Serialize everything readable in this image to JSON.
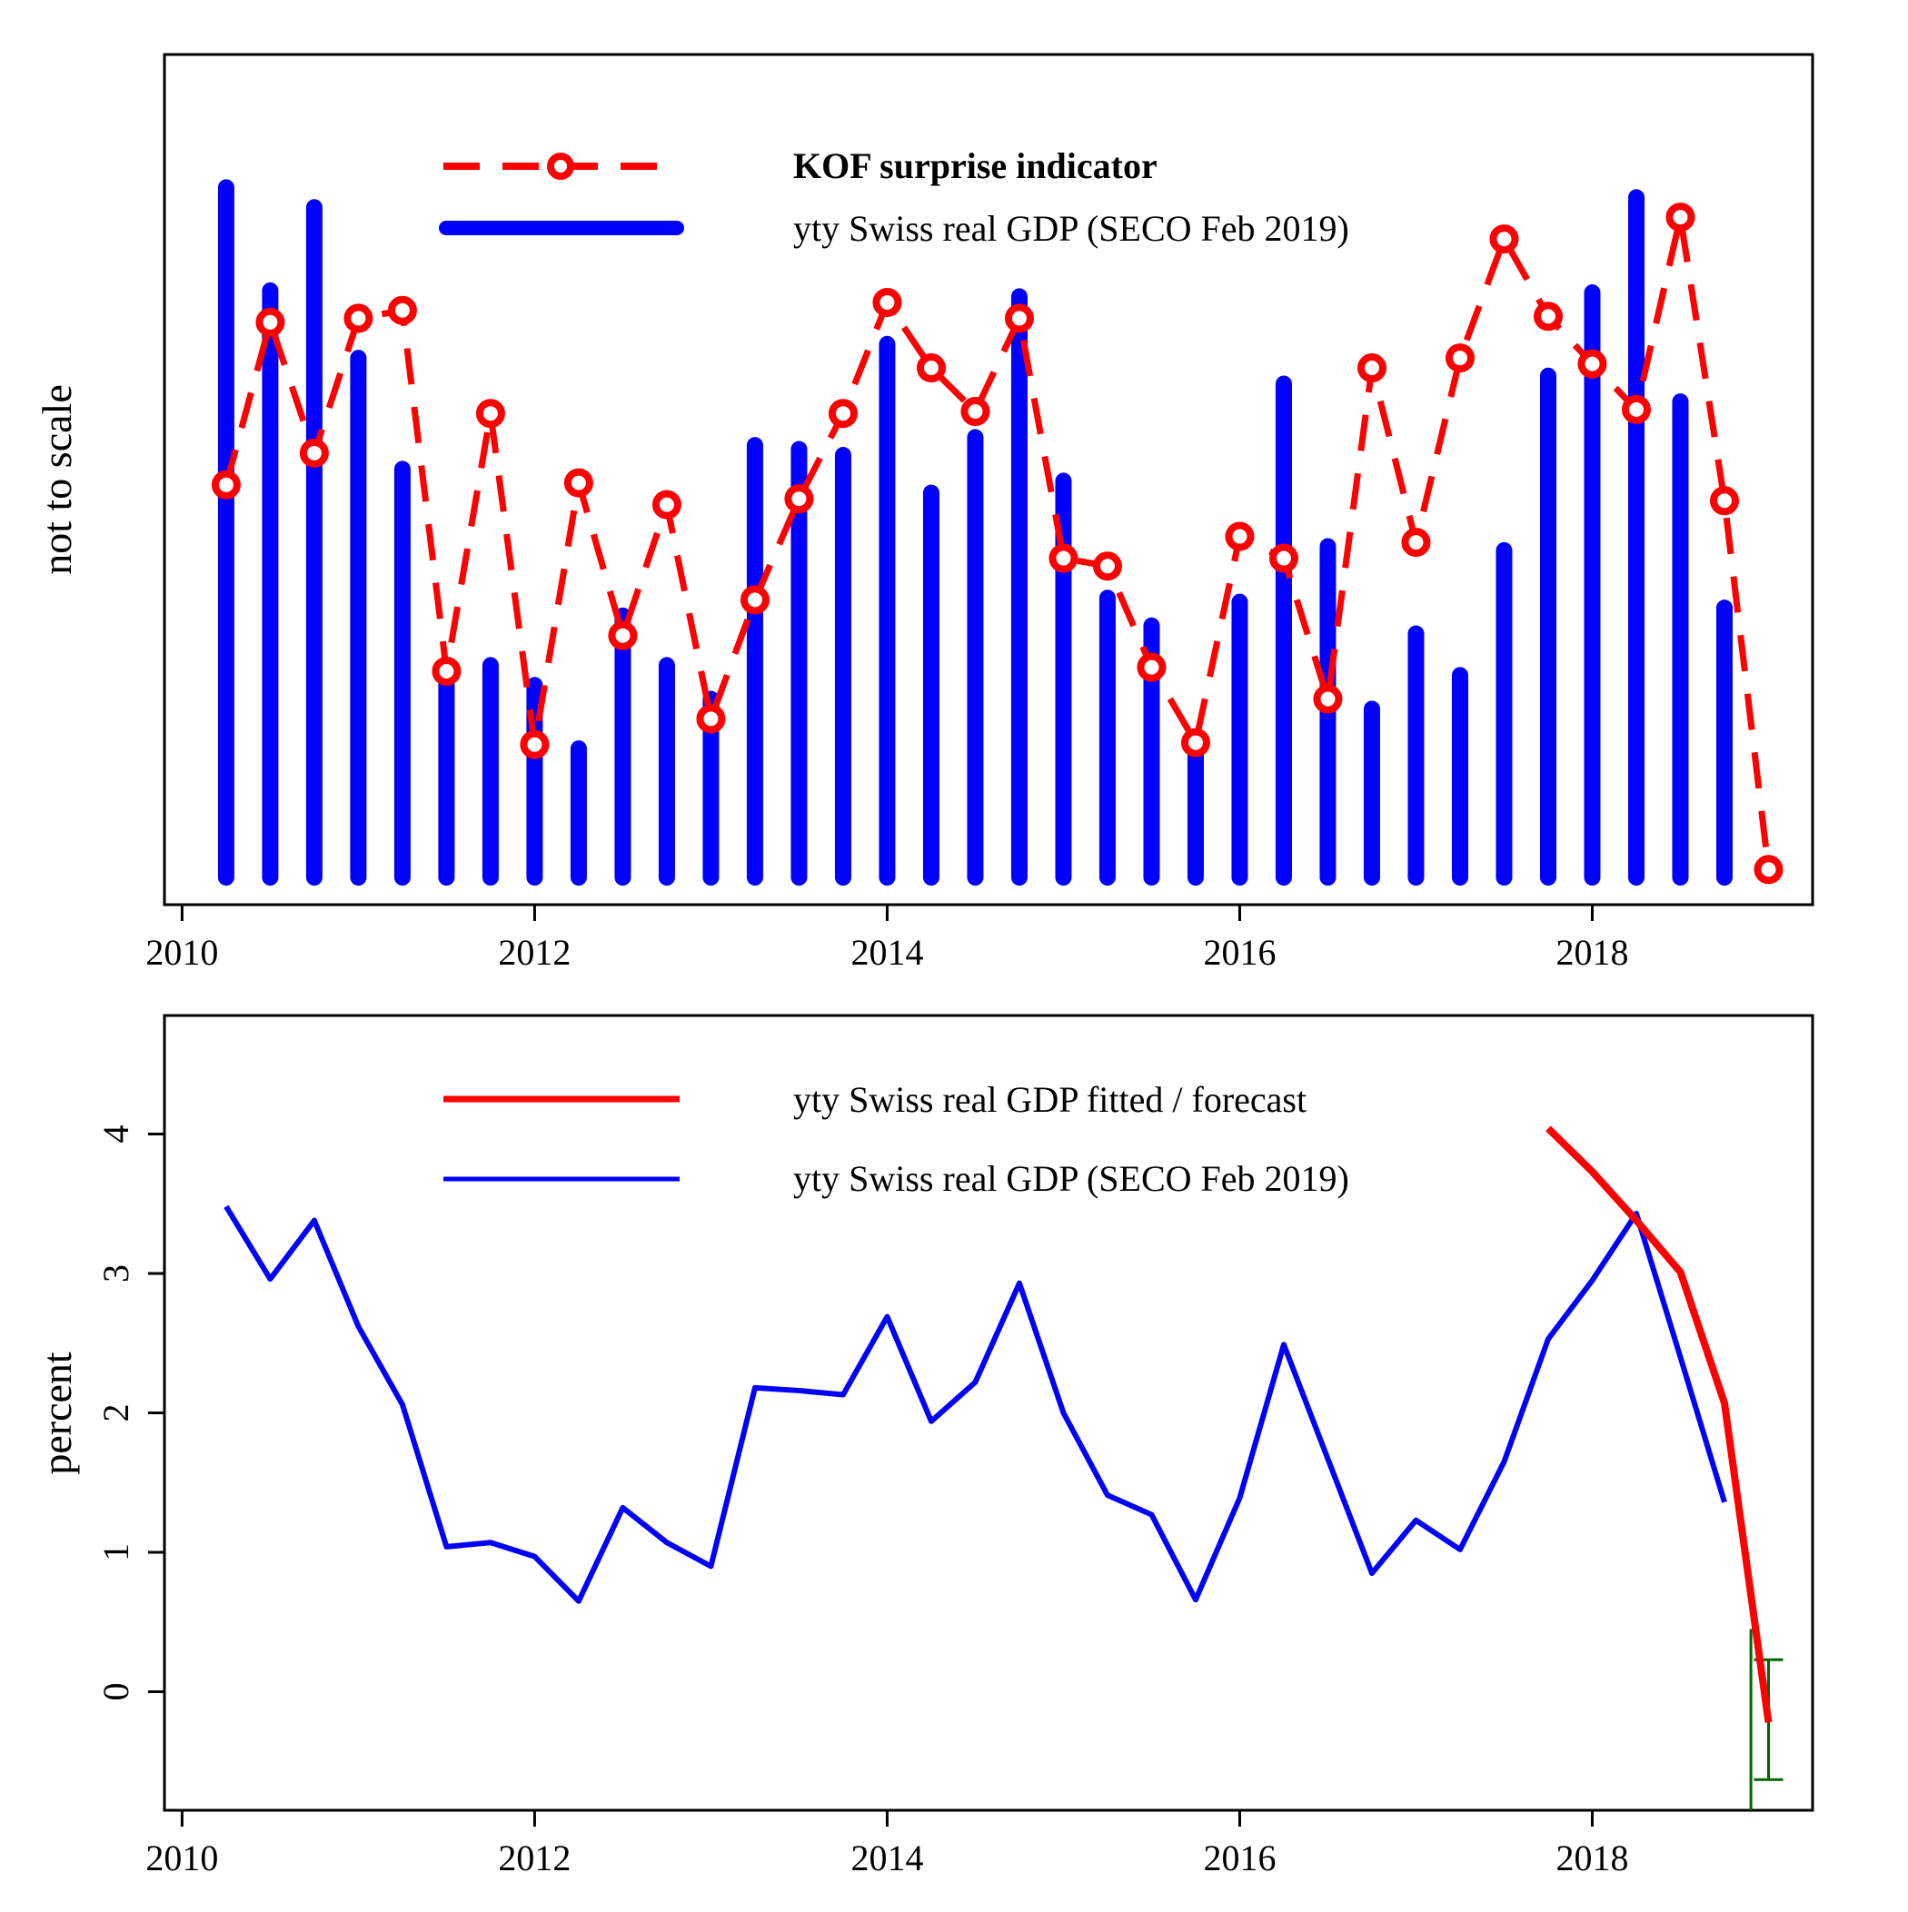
{
  "chart_data": [
    {
      "type": "bar",
      "ylabel": "not to scale",
      "x_ticks": [
        "2010",
        "2012",
        "2014",
        "2016",
        "2018"
      ],
      "xlim": [
        2009.9,
        2019.25
      ],
      "legend_placement": "top-center",
      "legend": [
        {
          "label": "KOF surprise indicator",
          "style": "red dashed line with open circle",
          "bold": true
        },
        {
          "label": "yty Swiss real GDP (SECO Feb 2019)",
          "style": "thick blue bar"
        }
      ],
      "series": [
        {
          "name": "yty Swiss real GDP (SECO Feb 2019)",
          "kind": "bar",
          "x": [
            2010.25,
            2010.5,
            2010.75,
            2011.0,
            2011.25,
            2011.5,
            2011.75,
            2012.0,
            2012.25,
            2012.5,
            2012.75,
            2013.0,
            2013.25,
            2013.5,
            2013.75,
            2014.0,
            2014.25,
            2014.5,
            2014.75,
            2015.0,
            2015.25,
            2015.5,
            2015.75,
            2016.0,
            2016.25,
            2016.5,
            2016.75,
            2017.0,
            2017.25,
            2017.5,
            2017.75,
            2018.0,
            2018.25,
            2018.5,
            2018.75
          ],
          "values": [
            3.48,
            2.96,
            3.38,
            2.62,
            2.06,
            1.04,
            1.07,
            0.97,
            0.65,
            1.32,
            1.07,
            0.9,
            2.18,
            2.16,
            2.13,
            2.69,
            1.94,
            2.22,
            2.93,
            2.0,
            1.41,
            1.27,
            0.66,
            1.39,
            2.49,
            1.67,
            0.85,
            1.23,
            1.02,
            1.65,
            2.53,
            2.95,
            3.43,
            2.4,
            1.36
          ]
        },
        {
          "name": "KOF surprise indicator",
          "kind": "line",
          "x": [
            2010.25,
            2010.5,
            2010.75,
            2011.0,
            2011.25,
            2011.5,
            2011.75,
            2012.0,
            2012.25,
            2012.5,
            2012.75,
            2013.0,
            2013.25,
            2013.5,
            2013.75,
            2014.0,
            2014.25,
            2014.5,
            2014.75,
            2015.0,
            2015.25,
            2015.5,
            2015.75,
            2016.0,
            2016.25,
            2016.5,
            2016.75,
            2017.0,
            2017.25,
            2017.5,
            2017.75,
            2018.0,
            2018.25,
            2018.5,
            2018.75,
            2019.0
          ],
          "values": [
            1.98,
            2.8,
            2.14,
            2.82,
            2.86,
            1.04,
            2.34,
            0.67,
            1.99,
            1.22,
            1.88,
            0.8,
            1.4,
            1.91,
            2.34,
            2.9,
            2.57,
            2.35,
            2.82,
            1.61,
            1.57,
            1.06,
            0.68,
            1.72,
            1.61,
            0.9,
            2.57,
            1.69,
            2.62,
            3.22,
            2.83,
            2.59,
            2.36,
            3.33,
            1.9,
            0.04
          ]
        }
      ]
    },
    {
      "type": "line",
      "ylabel": "percent",
      "x_ticks": [
        "2010",
        "2012",
        "2014",
        "2016",
        "2018"
      ],
      "y_ticks": [
        "0",
        "1",
        "2",
        "3",
        "4"
      ],
      "xlim": [
        2009.9,
        2019.25
      ],
      "ylim": [
        -0.85,
        4.85
      ],
      "legend_placement": "top-center",
      "legend": [
        {
          "label": "yty Swiss real GDP fitted / forecast",
          "style": "thick red line"
        },
        {
          "label": "yty Swiss real GDP (SECO Feb 2019)",
          "style": "blue line"
        }
      ],
      "series": [
        {
          "name": "yty Swiss real GDP fitted / forecast",
          "x": [
            2017.75,
            2018.0,
            2018.25,
            2018.5,
            2018.75,
            2019.0
          ],
          "values": [
            4.04,
            3.73,
            3.38,
            3.01,
            2.07,
            -0.22
          ]
        },
        {
          "name": "yty Swiss real GDP (SECO Feb 2019)",
          "x": [
            2010.25,
            2010.5,
            2010.75,
            2011.0,
            2011.25,
            2011.5,
            2011.75,
            2012.0,
            2012.25,
            2012.5,
            2012.75,
            2013.0,
            2013.25,
            2013.5,
            2013.75,
            2014.0,
            2014.25,
            2014.5,
            2014.75,
            2015.0,
            2015.25,
            2015.5,
            2015.75,
            2016.0,
            2016.25,
            2016.5,
            2016.75,
            2017.0,
            2017.25,
            2017.5,
            2017.75,
            2018.0,
            2018.25,
            2018.5,
            2018.75
          ],
          "values": [
            3.48,
            2.96,
            3.38,
            2.62,
            2.06,
            1.04,
            1.07,
            0.97,
            0.65,
            1.32,
            1.07,
            0.9,
            2.18,
            2.16,
            2.13,
            2.69,
            1.94,
            2.22,
            2.93,
            2.0,
            1.41,
            1.27,
            0.66,
            1.39,
            2.49,
            1.67,
            0.85,
            1.23,
            1.02,
            1.65,
            2.53,
            2.95,
            3.43,
            2.4,
            1.36
          ]
        }
      ],
      "annotations": {
        "vertical_marker_x": 2018.9,
        "vertical_marker_range": [
          -0.85,
          0.45
        ],
        "error_bar": {
          "x": 2019.0,
          "low": -0.63,
          "high": 0.23
        }
      }
    }
  ],
  "colors": {
    "red": "#ff0000",
    "blue": "#0000ff",
    "green": "#006400",
    "axis": "#000000"
  }
}
